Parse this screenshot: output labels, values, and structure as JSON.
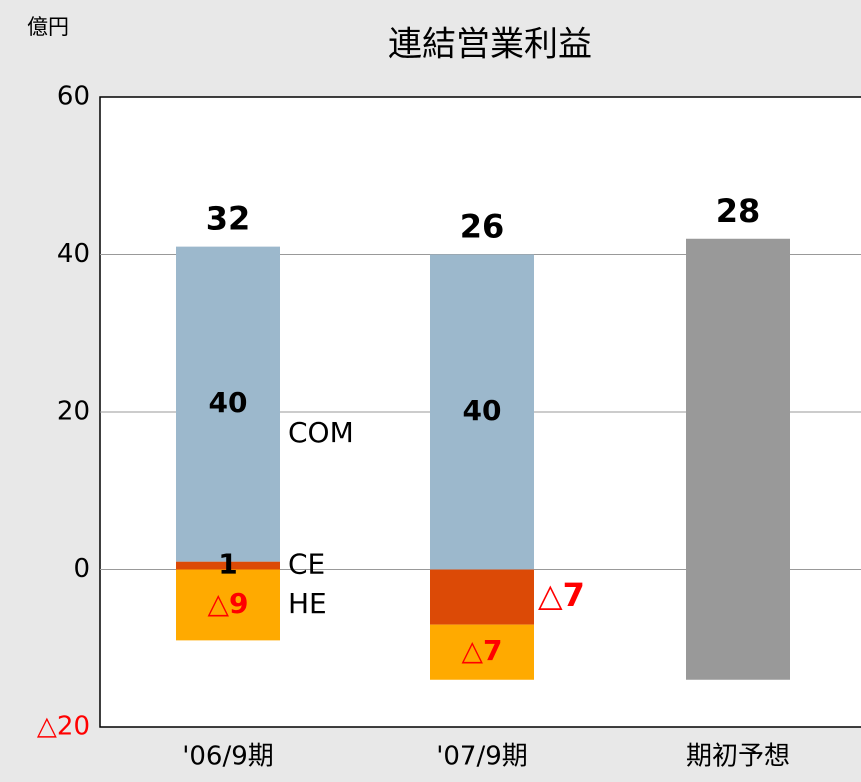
{
  "chart_data": {
    "type": "stacked_bar",
    "title": "連結営業利益",
    "unit": "億円",
    "categories": [
      "'06/9期",
      "'07/9期",
      "期初予想"
    ],
    "series": [
      {
        "name": "CE",
        "color": "#dc4a06",
        "values": [
          1,
          -7,
          null
        ],
        "value_labels": [
          "1",
          "△7",
          null
        ]
      },
      {
        "name": "HE",
        "color": "#ffaa00",
        "values": [
          -9,
          -7,
          null
        ],
        "value_labels": [
          "△9",
          "△7",
          null
        ]
      },
      {
        "name": "COM",
        "color": "#9cb8cc",
        "values": [
          40,
          40,
          null
        ]
      },
      {
        "color": "#999999",
        "values": [
          null,
          null,
          42
        ]
      },
      {
        "color": "#999999",
        "values": [
          null,
          null,
          -14
        ]
      }
    ],
    "totals": [
      32,
      26,
      28
    ],
    "ylim": [
      -20,
      60
    ],
    "yticks": [
      {
        "value": -20,
        "label": "△20"
      },
      0,
      20,
      40,
      60
    ],
    "grid": true
  }
}
